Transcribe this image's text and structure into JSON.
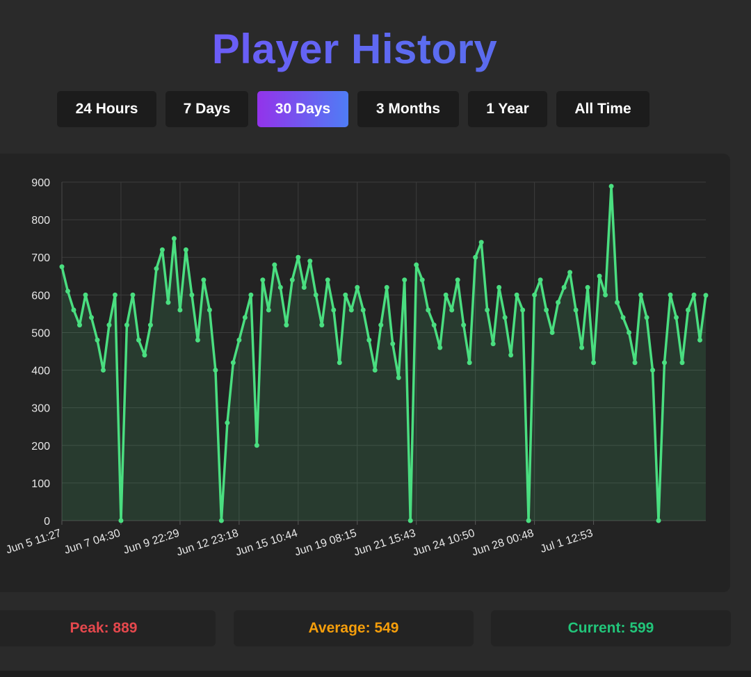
{
  "page": {
    "title": "Player History"
  },
  "time_ranges": [
    {
      "label": "24 Hours",
      "active": false
    },
    {
      "label": "7 Days",
      "active": false
    },
    {
      "label": "30 Days",
      "active": true
    },
    {
      "label": "3 Months",
      "active": false
    },
    {
      "label": "1 Year",
      "active": false
    },
    {
      "label": "All Time",
      "active": false
    }
  ],
  "stats": {
    "peak": {
      "label": "Peak: ",
      "value": "889",
      "color": "#e5484d"
    },
    "average": {
      "label": "Average: ",
      "value": "549",
      "color": "#f59e0b"
    },
    "current": {
      "label": "Current: ",
      "value": "599",
      "color": "#22c57a"
    }
  },
  "colors": {
    "line": "#4ade80",
    "fill": "rgba(74,222,128,0.13)",
    "accent_start": "#9333ea",
    "accent_end": "#4f7df5"
  },
  "chart_data": {
    "type": "line",
    "title": "",
    "xlabel": "",
    "ylabel": "",
    "ylim": [
      0,
      900
    ],
    "yticks": [
      0,
      100,
      200,
      300,
      400,
      500,
      600,
      700,
      800,
      900
    ],
    "x_tick_labels": [
      "Jun 5 11:27",
      "Jun 7 04:30",
      "Jun 9 22:29",
      "Jun 12 23:18",
      "Jun 15 10:44",
      "Jun 19 08:15",
      "Jun 21 15:43",
      "Jun 24 10:50",
      "Jun 28 00:48",
      "Jul 1 12:53"
    ],
    "x_tick_indices": [
      0,
      10,
      20,
      30,
      40,
      50,
      60,
      70,
      80,
      90
    ],
    "grid": true,
    "legend": "none",
    "series": [
      {
        "values": [
          675,
          610,
          560,
          520,
          600,
          540,
          480,
          400,
          520,
          600,
          0,
          520,
          600,
          480,
          440,
          520,
          670,
          720,
          580,
          750,
          560,
          720,
          600,
          480,
          640,
          560,
          400,
          0,
          260,
          420,
          480,
          540,
          600,
          200,
          640,
          560,
          680,
          620,
          520,
          640,
          700,
          620,
          690,
          600,
          520,
          640,
          560,
          420,
          600,
          560,
          620,
          560,
          480,
          400,
          520,
          620,
          470,
          380,
          640,
          0,
          680,
          640,
          560,
          520,
          460,
          600,
          560,
          640,
          520,
          420,
          700,
          740,
          560,
          470,
          620,
          540,
          440,
          600,
          560,
          0,
          600,
          640,
          560,
          500,
          580,
          620,
          660,
          560,
          460,
          620,
          420,
          650,
          600,
          889,
          580,
          540,
          500,
          420,
          600,
          540,
          400,
          0,
          420,
          600,
          540,
          420,
          560,
          600,
          480,
          599
        ]
      }
    ]
  }
}
